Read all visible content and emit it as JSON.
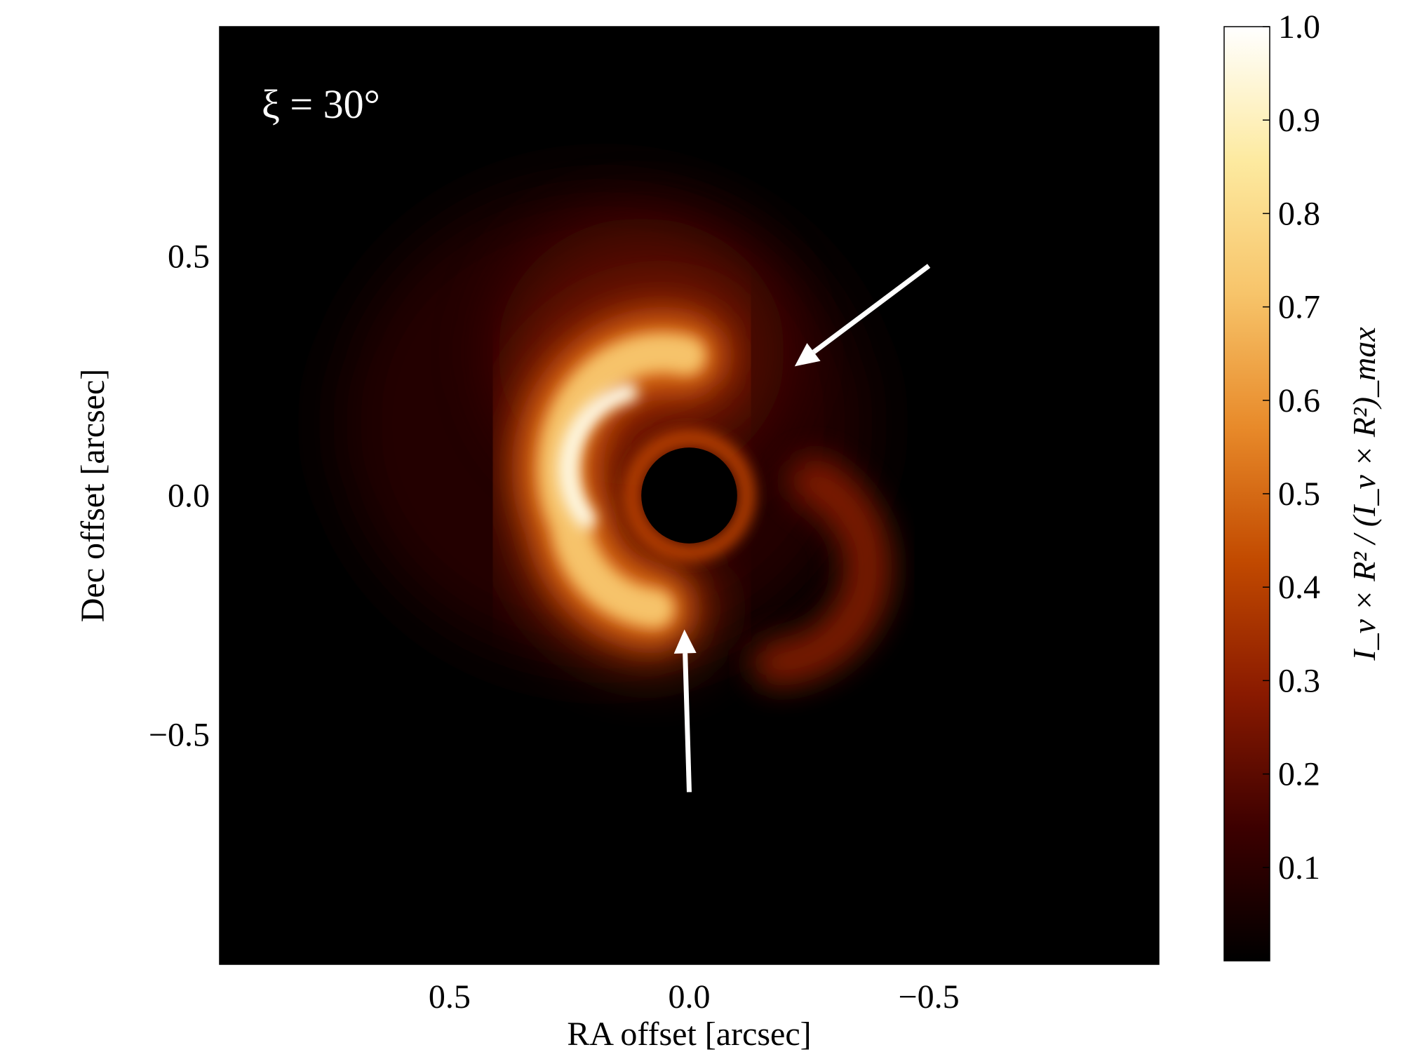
{
  "chart_data": {
    "type": "heatmap",
    "title": "",
    "annotation": "ξ = 30°",
    "xlabel": "RA offset [arcsec]",
    "ylabel": "Dec offset [arcsec]",
    "xlim": [
      0.98,
      -0.98
    ],
    "ylim": [
      -0.98,
      0.98
    ],
    "x_ticks": [
      0.5,
      0.0,
      -0.5
    ],
    "x_tick_labels": [
      "0.5",
      "0.0",
      "−0.5"
    ],
    "y_ticks": [
      0.5,
      0.0,
      -0.5
    ],
    "y_tick_labels": [
      "0.5",
      "0.0",
      "−0.5"
    ],
    "colorbar": {
      "label": "I_ν × R² / (I_ν × R²)_max",
      "range": [
        0.0,
        1.0
      ],
      "ticks": [
        0.1,
        0.2,
        0.3,
        0.4,
        0.5,
        0.6,
        0.7,
        0.8,
        0.9,
        1.0
      ],
      "tick_labels": [
        "0.1",
        "0.2",
        "0.3",
        "0.4",
        "0.5",
        "0.6",
        "0.7",
        "0.8",
        "0.9",
        "1.0"
      ],
      "colormap": "afmhot",
      "colors": [
        "#000000",
        "#3d0000",
        "#8a1a00",
        "#c24a00",
        "#e88a2a",
        "#f7c46a",
        "#fdeaa0",
        "#ffffff"
      ]
    },
    "features": {
      "central_mask": {
        "ra": 0.0,
        "dec": 0.0,
        "radius": 0.1
      },
      "bright_arc": {
        "ra_center": 0.05,
        "dec_center": 0.05,
        "radius": 0.22,
        "peak_level": 1.0
      },
      "faint_arc": {
        "ra_center": -0.2,
        "dec_center": -0.15,
        "radius": 0.2,
        "peak_level": 0.35
      },
      "arrows": [
        {
          "from": [
            -0.5,
            0.48
          ],
          "to": [
            -0.22,
            0.27
          ]
        },
        {
          "from": [
            0.0,
            -0.62
          ],
          "to": [
            0.01,
            -0.28
          ]
        }
      ]
    }
  }
}
